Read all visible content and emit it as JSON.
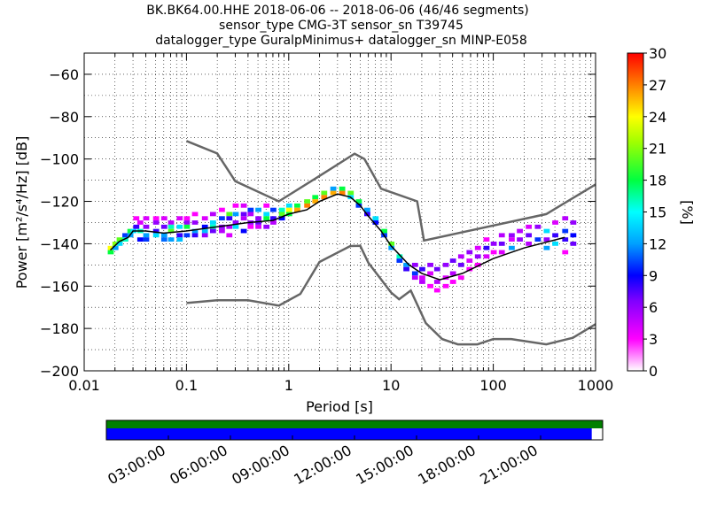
{
  "title_lines": [
    "BK.BK64.00.HHE   2018-06-06 -- 2018-06-06  (46/46 segments)",
    "sensor_type CMG-3T sensor_sn T39745",
    "datalogger_type GuralpMinimus+ datalogger_sn MINP-E058"
  ],
  "chart_data": {
    "type": "heatmap",
    "xlabel": "Period [s]",
    "ylabel": "Power [m²/s⁴/Hz] [dB]",
    "xscale": "log",
    "xlim": [
      0.01,
      1000
    ],
    "ylim": [
      -200,
      -50
    ],
    "xticks": [
      0.01,
      0.1,
      1,
      10,
      100,
      1000
    ],
    "xtick_labels": [
      "0.01",
      "0.1",
      "1",
      "10",
      "100",
      "1000"
    ],
    "yticks": [
      -200,
      -180,
      -160,
      -140,
      -120,
      -100,
      -80,
      -60
    ],
    "ytick_labels": [
      "−200",
      "−180",
      "−160",
      "−140",
      "−120",
      "−100",
      "−80",
      "−60"
    ],
    "grid": true,
    "colorbar": {
      "label": "[%]",
      "range": [
        0,
        30
      ],
      "ticks": [
        0,
        3,
        6,
        9,
        12,
        15,
        18,
        21,
        24,
        27,
        30
      ]
    },
    "noise_models": [
      {
        "period": [
          0.1,
          0.2,
          0.3,
          0.8,
          2,
          4.4,
          5.5,
          8,
          18,
          21,
          330,
          1000
        ],
        "power": [
          -91.5,
          -97.4,
          -110.5,
          -120,
          -108,
          -97.5,
          -100,
          -114,
          -120,
          -138.5,
          -126,
          -112
        ]
      },
      {
        "period": [
          0.1,
          0.2,
          0.4,
          0.8,
          1.3,
          2,
          4,
          5,
          6,
          10,
          12,
          15.6,
          21.9,
          31.6,
          45,
          70,
          100,
          150,
          330,
          600,
          1000
        ],
        "power": [
          -168,
          -166.7,
          -166.7,
          -169.2,
          -163.7,
          -148.6,
          -141.1,
          -141,
          -149,
          -163,
          -166.2,
          -162.1,
          -177.5,
          -185,
          -187.5,
          -187.5,
          -185,
          -185,
          -187.5,
          -184.4,
          -178
        ]
      }
    ],
    "mean_curve": {
      "period": [
        0.018,
        0.022,
        0.027,
        0.03,
        0.04,
        0.06,
        0.1,
        0.2,
        0.4,
        0.7,
        1,
        1.5,
        2,
        3,
        4,
        5,
        6,
        8,
        10,
        15,
        20,
        30,
        50,
        100,
        200,
        500
      ],
      "power": [
        -143,
        -139,
        -137,
        -134,
        -134,
        -135,
        -134,
        -132,
        -130,
        -129,
        -126,
        -124,
        -120,
        -116.5,
        -118,
        -122,
        -127,
        -134,
        -141,
        -150,
        -154,
        -157,
        -154,
        -147,
        -142,
        -137
      ]
    },
    "density_cells": [
      {
        "p": 0.018,
        "db": -144,
        "pct": 18
      },
      {
        "p": 0.018,
        "db": -142,
        "pct": 24
      },
      {
        "p": 0.02,
        "db": -142,
        "pct": 12
      },
      {
        "p": 0.02,
        "db": -140,
        "pct": 21
      },
      {
        "p": 0.022,
        "db": -140,
        "pct": 14
      },
      {
        "p": 0.022,
        "db": -138,
        "pct": 20
      },
      {
        "p": 0.025,
        "db": -138,
        "pct": 16
      },
      {
        "p": 0.025,
        "db": -136,
        "pct": 10
      },
      {
        "p": 0.028,
        "db": -136,
        "pct": 12
      },
      {
        "p": 0.028,
        "db": -134,
        "pct": 18
      },
      {
        "p": 0.03,
        "db": -134,
        "pct": 14
      },
      {
        "p": 0.032,
        "db": -132,
        "pct": 8
      },
      {
        "p": 0.032,
        "db": -128,
        "pct": 3
      },
      {
        "p": 0.035,
        "db": -130,
        "pct": 4
      },
      {
        "p": 0.035,
        "db": -134,
        "pct": 16
      },
      {
        "p": 0.035,
        "db": -138,
        "pct": 9
      },
      {
        "p": 0.04,
        "db": -128,
        "pct": 4
      },
      {
        "p": 0.04,
        "db": -132,
        "pct": 6
      },
      {
        "p": 0.04,
        "db": -136,
        "pct": 12
      },
      {
        "p": 0.04,
        "db": -138,
        "pct": 10
      },
      {
        "p": 0.05,
        "db": -128,
        "pct": 3
      },
      {
        "p": 0.05,
        "db": -130,
        "pct": 6
      },
      {
        "p": 0.05,
        "db": -134,
        "pct": 8
      },
      {
        "p": 0.05,
        "db": -136,
        "pct": 14
      },
      {
        "p": 0.06,
        "db": -128,
        "pct": 4
      },
      {
        "p": 0.06,
        "db": -132,
        "pct": 7
      },
      {
        "p": 0.06,
        "db": -136,
        "pct": 12
      },
      {
        "p": 0.06,
        "db": -138,
        "pct": 11
      },
      {
        "p": 0.07,
        "db": -130,
        "pct": 5
      },
      {
        "p": 0.07,
        "db": -132,
        "pct": 16
      },
      {
        "p": 0.07,
        "db": -134,
        "pct": 20
      },
      {
        "p": 0.07,
        "db": -138,
        "pct": 12
      },
      {
        "p": 0.085,
        "db": -128,
        "pct": 4
      },
      {
        "p": 0.085,
        "db": -132,
        "pct": 14
      },
      {
        "p": 0.085,
        "db": -136,
        "pct": 8
      },
      {
        "p": 0.085,
        "db": -138,
        "pct": 13
      },
      {
        "p": 0.1,
        "db": -128,
        "pct": 3
      },
      {
        "p": 0.1,
        "db": -130,
        "pct": 6
      },
      {
        "p": 0.1,
        "db": -132,
        "pct": 18
      },
      {
        "p": 0.1,
        "db": -136,
        "pct": 10
      },
      {
        "p": 0.12,
        "db": -126,
        "pct": 3
      },
      {
        "p": 0.12,
        "db": -130,
        "pct": 6
      },
      {
        "p": 0.12,
        "db": -134,
        "pct": 12
      },
      {
        "p": 0.12,
        "db": -136,
        "pct": 8
      },
      {
        "p": 0.15,
        "db": -128,
        "pct": 4
      },
      {
        "p": 0.15,
        "db": -132,
        "pct": 9
      },
      {
        "p": 0.15,
        "db": -134,
        "pct": 13
      },
      {
        "p": 0.15,
        "db": -136,
        "pct": 6
      },
      {
        "p": 0.18,
        "db": -126,
        "pct": 5
      },
      {
        "p": 0.18,
        "db": -130,
        "pct": 14
      },
      {
        "p": 0.18,
        "db": -132,
        "pct": 16
      },
      {
        "p": 0.18,
        "db": -134,
        "pct": 7
      },
      {
        "p": 0.22,
        "db": -124,
        "pct": 3
      },
      {
        "p": 0.22,
        "db": -128,
        "pct": 10
      },
      {
        "p": 0.22,
        "db": -132,
        "pct": 6
      },
      {
        "p": 0.22,
        "db": -134,
        "pct": 5
      },
      {
        "p": 0.26,
        "db": -126,
        "pct": 20
      },
      {
        "p": 0.26,
        "db": -128,
        "pct": 8
      },
      {
        "p": 0.26,
        "db": -132,
        "pct": 5
      },
      {
        "p": 0.26,
        "db": -136,
        "pct": 4
      },
      {
        "p": 0.3,
        "db": -122,
        "pct": 3
      },
      {
        "p": 0.3,
        "db": -126,
        "pct": 12
      },
      {
        "p": 0.3,
        "db": -130,
        "pct": 6
      },
      {
        "p": 0.3,
        "db": -132,
        "pct": 14
      },
      {
        "p": 0.36,
        "db": -122,
        "pct": 4
      },
      {
        "p": 0.36,
        "db": -126,
        "pct": 7
      },
      {
        "p": 0.36,
        "db": -128,
        "pct": 5
      },
      {
        "p": 0.36,
        "db": -134,
        "pct": 9
      },
      {
        "p": 0.42,
        "db": -124,
        "pct": 10
      },
      {
        "p": 0.42,
        "db": -126,
        "pct": 5
      },
      {
        "p": 0.42,
        "db": -130,
        "pct": 6
      },
      {
        "p": 0.42,
        "db": -132,
        "pct": 3
      },
      {
        "p": 0.5,
        "db": -124,
        "pct": 12
      },
      {
        "p": 0.5,
        "db": -128,
        "pct": 6
      },
      {
        "p": 0.5,
        "db": -130,
        "pct": 7
      },
      {
        "p": 0.5,
        "db": -132,
        "pct": 4
      },
      {
        "p": 0.6,
        "db": -122,
        "pct": 3
      },
      {
        "p": 0.6,
        "db": -126,
        "pct": 14
      },
      {
        "p": 0.6,
        "db": -128,
        "pct": 18
      },
      {
        "p": 0.6,
        "db": -132,
        "pct": 6
      },
      {
        "p": 0.7,
        "db": -124,
        "pct": 10
      },
      {
        "p": 0.7,
        "db": -128,
        "pct": 8
      },
      {
        "p": 0.7,
        "db": -130,
        "pct": 5
      },
      {
        "p": 0.85,
        "db": -124,
        "pct": 16
      },
      {
        "p": 0.85,
        "db": -126,
        "pct": 20
      },
      {
        "p": 0.85,
        "db": -128,
        "pct": 9
      },
      {
        "p": 1.0,
        "db": -122,
        "pct": 14
      },
      {
        "p": 1.0,
        "db": -124,
        "pct": 24
      },
      {
        "p": 1.0,
        "db": -126,
        "pct": 18
      },
      {
        "p": 1.2,
        "db": -122,
        "pct": 18
      },
      {
        "p": 1.2,
        "db": -124,
        "pct": 26
      },
      {
        "p": 1.5,
        "db": -120,
        "pct": 20
      },
      {
        "p": 1.5,
        "db": -122,
        "pct": 27
      },
      {
        "p": 1.8,
        "db": -118,
        "pct": 18
      },
      {
        "p": 1.8,
        "db": -120,
        "pct": 26
      },
      {
        "p": 2.2,
        "db": -116,
        "pct": 20
      },
      {
        "p": 2.2,
        "db": -118,
        "pct": 27
      },
      {
        "p": 2.7,
        "db": -116,
        "pct": 26
      },
      {
        "p": 2.7,
        "db": -114,
        "pct": 12
      },
      {
        "p": 3.3,
        "db": -114,
        "pct": 18
      },
      {
        "p": 3.3,
        "db": -116,
        "pct": 27
      },
      {
        "p": 4.0,
        "db": -116,
        "pct": 20
      },
      {
        "p": 4.0,
        "db": -118,
        "pct": 14
      },
      {
        "p": 4.8,
        "db": -120,
        "pct": 18
      },
      {
        "p": 4.8,
        "db": -122,
        "pct": 10
      },
      {
        "p": 5.8,
        "db": -124,
        "pct": 12
      },
      {
        "p": 5.8,
        "db": -126,
        "pct": 8
      },
      {
        "p": 7.0,
        "db": -128,
        "pct": 14
      },
      {
        "p": 7.0,
        "db": -130,
        "pct": 9
      },
      {
        "p": 8.5,
        "db": -134,
        "pct": 18
      },
      {
        "p": 8.5,
        "db": -136,
        "pct": 10
      },
      {
        "p": 10,
        "db": -140,
        "pct": 20
      },
      {
        "p": 10,
        "db": -142,
        "pct": 12
      },
      {
        "p": 12,
        "db": -146,
        "pct": 16
      },
      {
        "p": 12,
        "db": -148,
        "pct": 10
      },
      {
        "p": 14,
        "db": -150,
        "pct": 12
      },
      {
        "p": 14,
        "db": -152,
        "pct": 8
      },
      {
        "p": 17,
        "db": -150,
        "pct": 6
      },
      {
        "p": 17,
        "db": -154,
        "pct": 10
      },
      {
        "p": 17,
        "db": -156,
        "pct": 5
      },
      {
        "p": 20,
        "db": -152,
        "pct": 8
      },
      {
        "p": 20,
        "db": -156,
        "pct": 4
      },
      {
        "p": 20,
        "db": -158,
        "pct": 5
      },
      {
        "p": 24,
        "db": -150,
        "pct": 6
      },
      {
        "p": 24,
        "db": -154,
        "pct": 4
      },
      {
        "p": 24,
        "db": -160,
        "pct": 3
      },
      {
        "p": 28,
        "db": -152,
        "pct": 7
      },
      {
        "p": 28,
        "db": -158,
        "pct": 5
      },
      {
        "p": 28,
        "db": -162,
        "pct": 3
      },
      {
        "p": 34,
        "db": -150,
        "pct": 6
      },
      {
        "p": 34,
        "db": -156,
        "pct": 4
      },
      {
        "p": 34,
        "db": -160,
        "pct": 3
      },
      {
        "p": 40,
        "db": -148,
        "pct": 7
      },
      {
        "p": 40,
        "db": -154,
        "pct": 5
      },
      {
        "p": 40,
        "db": -158,
        "pct": 3
      },
      {
        "p": 48,
        "db": -146,
        "pct": 5
      },
      {
        "p": 48,
        "db": -150,
        "pct": 7
      },
      {
        "p": 48,
        "db": -156,
        "pct": 3
      },
      {
        "p": 58,
        "db": -144,
        "pct": 6
      },
      {
        "p": 58,
        "db": -148,
        "pct": 4
      },
      {
        "p": 58,
        "db": -152,
        "pct": 3
      },
      {
        "p": 70,
        "db": -142,
        "pct": 4
      },
      {
        "p": 70,
        "db": -146,
        "pct": 6
      },
      {
        "p": 70,
        "db": -150,
        "pct": 3
      },
      {
        "p": 85,
        "db": -138,
        "pct": 3
      },
      {
        "p": 85,
        "db": -142,
        "pct": 8
      },
      {
        "p": 85,
        "db": -146,
        "pct": 4
      },
      {
        "p": 100,
        "db": -140,
        "pct": 6
      },
      {
        "p": 100,
        "db": -144,
        "pct": 3
      },
      {
        "p": 120,
        "db": -136,
        "pct": 5
      },
      {
        "p": 120,
        "db": -140,
        "pct": 7
      },
      {
        "p": 120,
        "db": -144,
        "pct": 4
      },
      {
        "p": 150,
        "db": -136,
        "pct": 6
      },
      {
        "p": 150,
        "db": -138,
        "pct": 4
      },
      {
        "p": 150,
        "db": -142,
        "pct": 12
      },
      {
        "p": 180,
        "db": -134,
        "pct": 5
      },
      {
        "p": 180,
        "db": -138,
        "pct": 6
      },
      {
        "p": 220,
        "db": -132,
        "pct": 4
      },
      {
        "p": 220,
        "db": -136,
        "pct": 7
      },
      {
        "p": 220,
        "db": -140,
        "pct": 5
      },
      {
        "p": 270,
        "db": -132,
        "pct": 6
      },
      {
        "p": 270,
        "db": -138,
        "pct": 10
      },
      {
        "p": 330,
        "db": -134,
        "pct": 14
      },
      {
        "p": 330,
        "db": -138,
        "pct": 6
      },
      {
        "p": 330,
        "db": -142,
        "pct": 12
      },
      {
        "p": 400,
        "db": -130,
        "pct": 4
      },
      {
        "p": 400,
        "db": -136,
        "pct": 8
      },
      {
        "p": 400,
        "db": -140,
        "pct": 14
      },
      {
        "p": 500,
        "db": -128,
        "pct": 5
      },
      {
        "p": 500,
        "db": -134,
        "pct": 10
      },
      {
        "p": 500,
        "db": -138,
        "pct": 8
      },
      {
        "p": 500,
        "db": -144,
        "pct": 3
      },
      {
        "p": 600,
        "db": -130,
        "pct": 6
      },
      {
        "p": 600,
        "db": -136,
        "pct": 9
      },
      {
        "p": 600,
        "db": -140,
        "pct": 7
      }
    ]
  },
  "timeline": {
    "tick_labels": [
      "03:00:00",
      "06:00:00",
      "09:00:00",
      "12:00:00",
      "15:00:00",
      "18:00:00",
      "21:00:00"
    ],
    "tick_hours": [
      3,
      6,
      9,
      12,
      15,
      18,
      21
    ],
    "hour_range": [
      0,
      24
    ],
    "top_bar_color": "#008000",
    "bottom_bar_color": "#0000ff",
    "bottom_bar_fraction": 0.978
  },
  "colors": {
    "noise_model": "#666666",
    "mean_curve": "#000000"
  }
}
